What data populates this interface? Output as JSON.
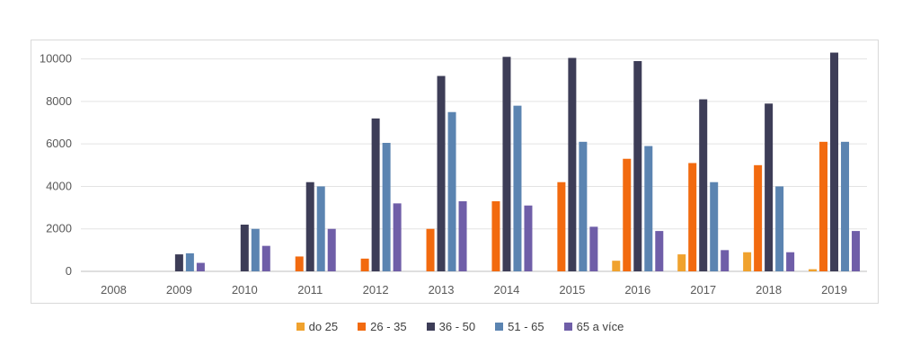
{
  "chart_data": {
    "type": "bar",
    "title": "",
    "xlabel": "",
    "ylabel": "",
    "ylim": [
      0,
      11000
    ],
    "yticks": [
      0,
      2000,
      4000,
      6000,
      8000,
      10000
    ],
    "grid": true,
    "legend_position": "bottom",
    "categories": [
      "2008",
      "2009",
      "2010",
      "2011",
      "2012",
      "2013",
      "2014",
      "2015",
      "2016",
      "2017",
      "2018",
      "2019"
    ],
    "series": [
      {
        "name": "do 25",
        "color": "#f0a22e",
        "values": [
          0,
          0,
          0,
          0,
          0,
          0,
          0,
          0,
          500,
          800,
          900,
          100
        ]
      },
      {
        "name": "26 - 35",
        "color": "#f26a0f",
        "values": [
          0,
          0,
          0,
          700,
          600,
          2000,
          3300,
          4200,
          5300,
          5100,
          5000,
          6100
        ]
      },
      {
        "name": "36 - 50",
        "color": "#3d3d57",
        "values": [
          0,
          800,
          2200,
          4200,
          7200,
          9200,
          10100,
          10050,
          9900,
          8100,
          7900,
          10300
        ]
      },
      {
        "name": "51 - 65",
        "color": "#5b84b1",
        "values": [
          0,
          850,
          2000,
          4000,
          6050,
          7500,
          7800,
          6100,
          5900,
          4200,
          4000,
          6100
        ]
      },
      {
        "name": "65 a více",
        "color": "#6f5ea8",
        "values": [
          0,
          400,
          1200,
          2000,
          3200,
          3300,
          3100,
          2100,
          1900,
          1000,
          900,
          1900
        ]
      }
    ]
  }
}
